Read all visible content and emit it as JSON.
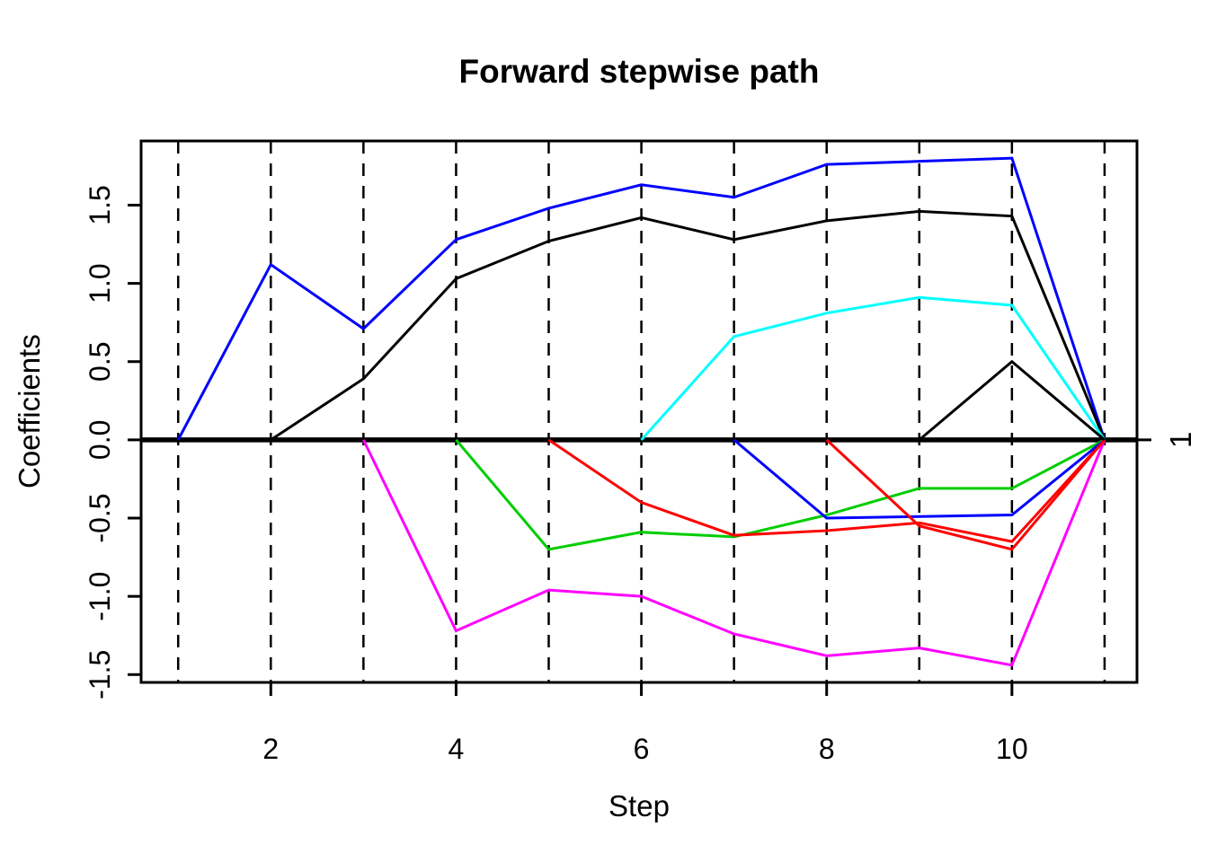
{
  "chart_data": {
    "type": "line",
    "title": "Forward stepwise path",
    "xlabel": "Step",
    "ylabel": "Coefficients",
    "right_axis_label": "1",
    "legend": "none",
    "grid": "dashed vertical line at every step 1-11",
    "xlim": [
      0.6,
      11.35
    ],
    "ylim": [
      -1.55,
      1.91
    ],
    "x_tick_values": [
      2,
      4,
      6,
      8,
      10
    ],
    "x_tick_labels": [
      "2",
      "4",
      "6",
      "8",
      "10"
    ],
    "y_tick_values": [
      -1.5,
      -1.0,
      -0.5,
      0.0,
      0.5,
      1.0,
      1.5
    ],
    "y_tick_labels": [
      "-1.5",
      "-1.0",
      "-0.5",
      "0.0",
      "0.5",
      "1.0",
      "1.5"
    ],
    "step_lines": [
      1,
      2,
      3,
      4,
      5,
      6,
      7,
      8,
      9,
      10,
      11
    ],
    "zero_line_y": 0,
    "right_tick_at": 0,
    "colors": {
      "axis": "#000000",
      "blue": "#0000FF",
      "black": "#000000",
      "magenta": "#FF00FF",
      "green": "#00CD00",
      "red": "#FF0000",
      "cyan": "#00FFFF"
    },
    "series": [
      {
        "name": "coef-path-blue-1",
        "color": "#0000FF",
        "x": [
          1,
          2,
          3,
          4,
          5,
          6,
          7,
          8,
          9,
          10,
          11
        ],
        "y": [
          0,
          1.12,
          0.71,
          1.28,
          1.48,
          1.63,
          1.55,
          1.76,
          1.78,
          1.8,
          0
        ]
      },
      {
        "name": "coef-path-black-1",
        "color": "#000000",
        "x": [
          2,
          3,
          4,
          5,
          6,
          7,
          8,
          9,
          10,
          11
        ],
        "y": [
          0,
          0.39,
          1.03,
          1.27,
          1.42,
          1.28,
          1.4,
          1.46,
          1.43,
          0
        ]
      },
      {
        "name": "coef-path-magenta",
        "color": "#FF00FF",
        "x": [
          3,
          4,
          5,
          6,
          7,
          8,
          9,
          10,
          11
        ],
        "y": [
          0,
          -1.22,
          -0.96,
          -1.0,
          -1.24,
          -1.38,
          -1.33,
          -1.44,
          0
        ]
      },
      {
        "name": "coef-path-green",
        "color": "#00CD00",
        "x": [
          4,
          5,
          6,
          7,
          8,
          9,
          10,
          11
        ],
        "y": [
          0,
          -0.7,
          -0.59,
          -0.62,
          -0.48,
          -0.31,
          -0.31,
          0
        ]
      },
      {
        "name": "coef-path-red-1",
        "color": "#FF0000",
        "x": [
          5,
          6,
          7,
          8,
          9,
          10,
          11
        ],
        "y": [
          0,
          -0.4,
          -0.61,
          -0.58,
          -0.53,
          -0.65,
          0
        ]
      },
      {
        "name": "coef-path-cyan",
        "color": "#00FFFF",
        "x": [
          6,
          7,
          8,
          9,
          10,
          11
        ],
        "y": [
          0,
          0.66,
          0.81,
          0.91,
          0.86,
          0
        ]
      },
      {
        "name": "coef-path-blue-2",
        "color": "#0000FF",
        "x": [
          7,
          8,
          9,
          10,
          11
        ],
        "y": [
          0,
          -0.5,
          -0.49,
          -0.48,
          0
        ]
      },
      {
        "name": "coef-path-red-2",
        "color": "#FF0000",
        "x": [
          8,
          9,
          10,
          11
        ],
        "y": [
          0,
          -0.55,
          -0.7,
          0
        ]
      },
      {
        "name": "coef-path-black-2",
        "color": "#000000",
        "x": [
          9,
          10,
          11
        ],
        "y": [
          0,
          0.5,
          0
        ]
      }
    ]
  }
}
